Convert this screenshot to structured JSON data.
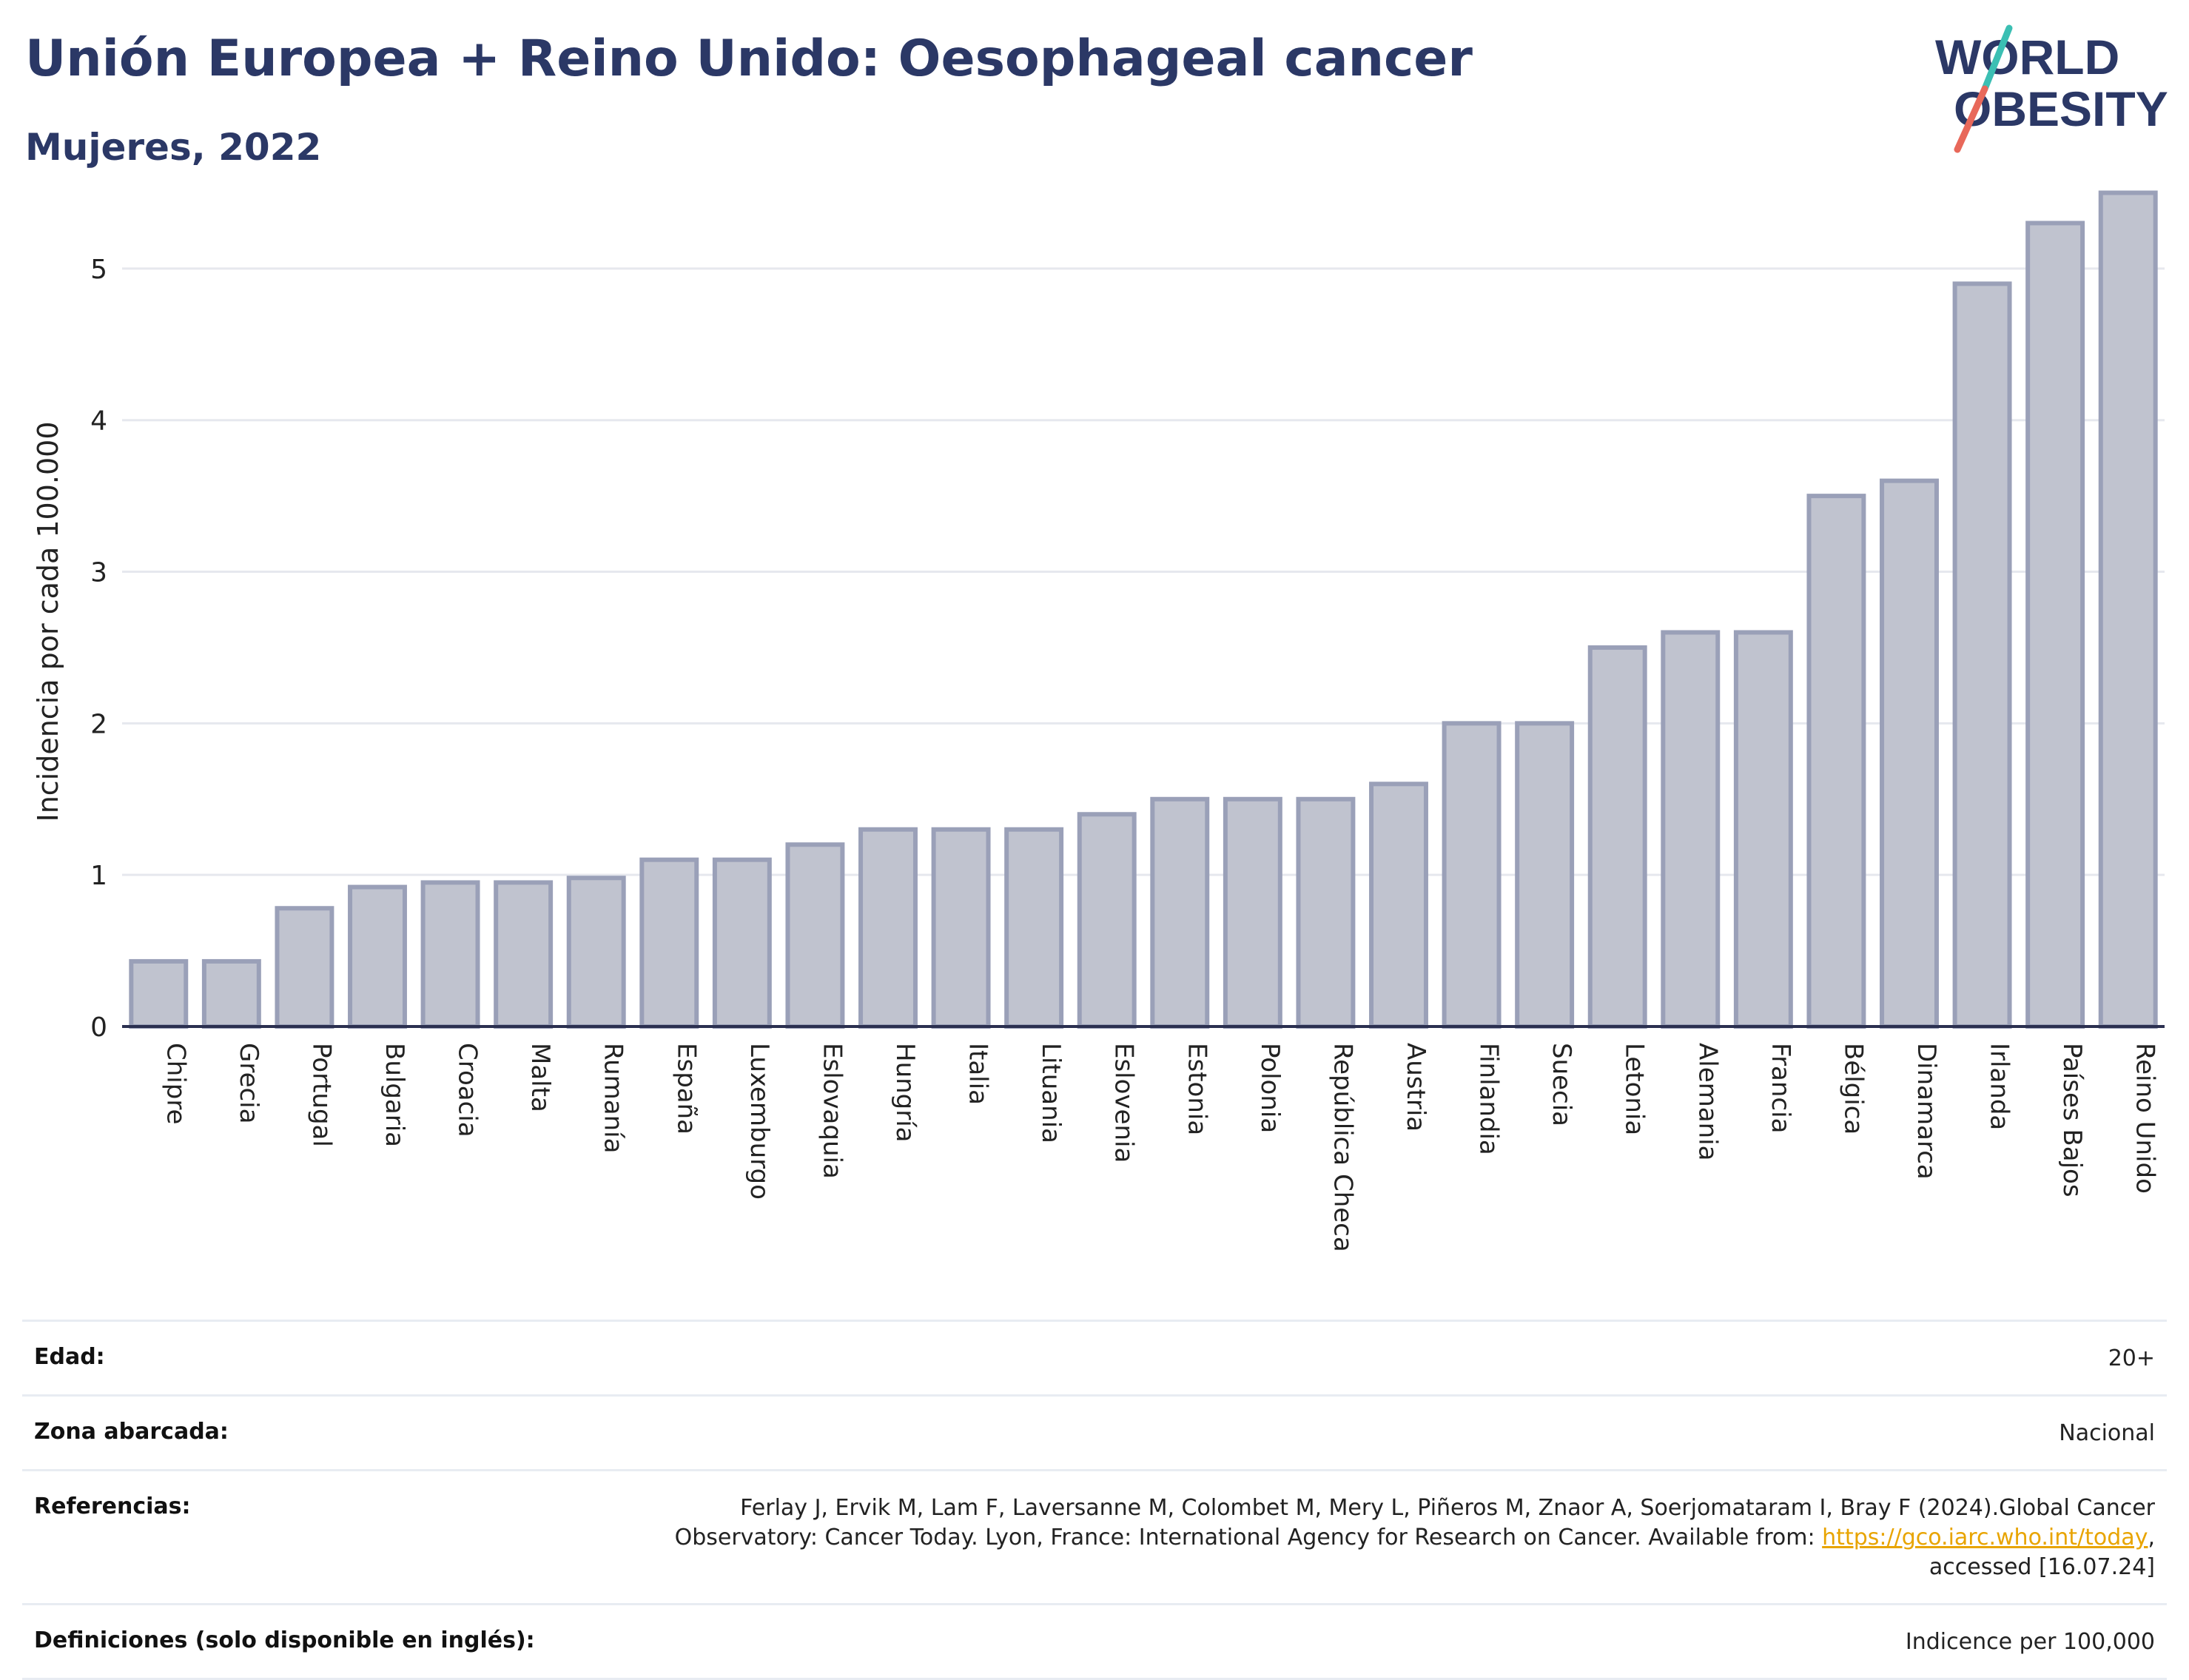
{
  "header": {
    "title": "Unión Europea + Reino Unido: Oesophageal cancer",
    "subtitle": "Mujeres, 2022"
  },
  "logo": {
    "line1": "WORLD",
    "line2": "OBESITY",
    "accent_teal": "#3bbfb3",
    "accent_red": "#e8685a",
    "text_color": "#2b3866"
  },
  "chart_data": {
    "type": "bar",
    "ylabel": "Incidencia por cada 100.000",
    "xlabel": "",
    "ylim": [
      0,
      5.6
    ],
    "yticks": [
      0,
      1,
      2,
      3,
      4,
      5
    ],
    "grid": true,
    "bar_color": "#c0c3cf",
    "bar_border_color": "#9aa0b8",
    "categories": [
      "Chipre",
      "Grecia",
      "Portugal",
      "Bulgaria",
      "Croacia",
      "Malta",
      "Rumanía",
      "España",
      "Luxemburgo",
      "Eslovaquia",
      "Hungría",
      "Italia",
      "Lituania",
      "Eslovenia",
      "Estonia",
      "Polonia",
      "República Checa",
      "Austria",
      "Finlandia",
      "Suecia",
      "Letonia",
      "Alemania",
      "Francia",
      "Bélgica",
      "Dinamarca",
      "Irlanda",
      "Países Bajos",
      "Reino Unido"
    ],
    "values": [
      0.43,
      0.43,
      0.78,
      0.92,
      0.95,
      0.95,
      0.98,
      1.1,
      1.1,
      1.2,
      1.3,
      1.3,
      1.3,
      1.4,
      1.5,
      1.5,
      1.5,
      1.6,
      2.0,
      2.0,
      2.5,
      2.6,
      2.6,
      3.5,
      3.6,
      4.9,
      5.3,
      5.5
    ]
  },
  "info": {
    "age_label": "Edad:",
    "age_value": "20+",
    "area_label": "Zona abarcada:",
    "area_value": "Nacional",
    "refs_label": "Referencias:",
    "refs_text_1": "Ferlay J, Ervik M, Lam F, Laversanne M, Colombet M, Mery L, Piñeros M, Znaor A, Soerjomataram I, Bray F (2024).Global Cancer",
    "refs_text_2": "Observatory: Cancer Today. Lyon, France: International Agency for Research on Cancer. Available from: ",
    "refs_link": "https://gco.iarc.who.int/today",
    "refs_text_3": ",",
    "refs_text_4": "accessed [16.07.24]",
    "defs_label": "Definiciones (solo disponible en inglés):",
    "defs_value": "Indicence per 100,000"
  }
}
